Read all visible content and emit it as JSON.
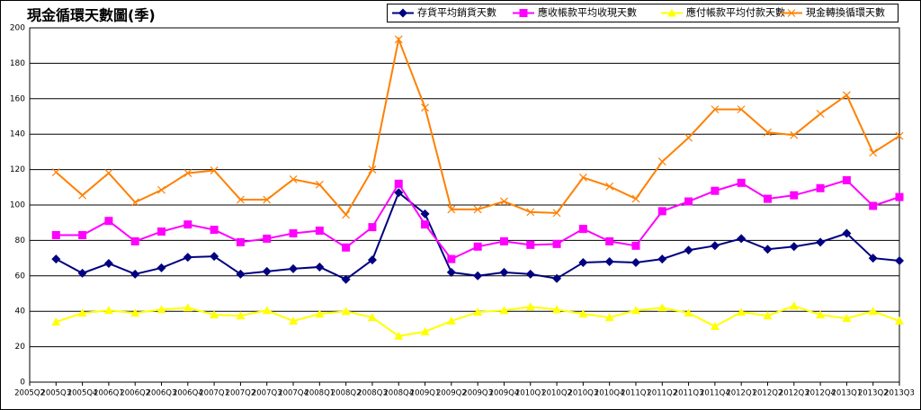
{
  "chart_data": {
    "type": "line",
    "title": "現金循環天數圖(季)",
    "categories": [
      "2005Q2",
      "2005Q3",
      "2005Q4",
      "2006Q1",
      "2006Q2",
      "2006Q3",
      "2006Q4",
      "2007Q1",
      "2007Q2",
      "2007Q3",
      "2007Q4",
      "2008Q1",
      "2008Q2",
      "2008Q3",
      "2008Q4",
      "2009Q1",
      "2009Q2",
      "2009Q3",
      "2009Q4",
      "2010Q1",
      "2010Q2",
      "2010Q3",
      "2010Q4",
      "2011Q1",
      "2011Q2",
      "2011Q3",
      "2011Q4",
      "2012Q1",
      "2012Q2",
      "2012Q3",
      "2012Q4",
      "2013Q1",
      "2013Q2",
      "2013Q3"
    ],
    "series": [
      {
        "name": "存貨平均銷貨天數",
        "color": "#000080",
        "marker": "diamond",
        "values": [
          null,
          69.5,
          61.5,
          67,
          61,
          64.5,
          70.5,
          71,
          61,
          62.5,
          64,
          65,
          58,
          69,
          107,
          95,
          62,
          60,
          62,
          61,
          58.5,
          67.5,
          68,
          67.5,
          69.5,
          74.5,
          77,
          81,
          75,
          76.5,
          79,
          84,
          70,
          68.5
        ]
      },
      {
        "name": "應收帳款平均收現天數",
        "color": "#ff00ff",
        "marker": "square",
        "values": [
          null,
          83,
          83,
          91,
          79.5,
          85,
          89,
          86,
          79,
          81,
          84,
          85.5,
          76,
          87.5,
          112,
          89,
          69.5,
          76.5,
          79.5,
          77.5,
          78,
          86.5,
          79.5,
          77,
          96.5,
          102,
          108,
          112.5,
          103.5,
          105.5,
          109.5,
          114,
          99.5,
          104.5
        ]
      },
      {
        "name": "應付帳款平均付款天數",
        "color": "#ffff00",
        "marker": "triangle",
        "values": [
          null,
          34,
          39,
          40.5,
          39,
          41,
          42,
          38,
          37.5,
          40.5,
          34.5,
          38.5,
          40,
          36.5,
          26,
          28.5,
          34.5,
          39.5,
          40.5,
          42.5,
          41,
          38.5,
          36.5,
          40.5,
          42,
          39,
          31.5,
          39.5,
          37.5,
          43,
          38,
          36,
          40,
          34.5
        ]
      },
      {
        "name": "現金轉換循環天數",
        "color": "#ff8000",
        "marker": "x",
        "values": [
          null,
          118.5,
          105.5,
          118,
          101.5,
          108.5,
          118,
          119.5,
          103,
          103,
          114.5,
          111.5,
          94.5,
          120,
          193.5,
          155,
          97.5,
          97.5,
          102,
          96,
          95.5,
          115.5,
          110.5,
          103.5,
          124.5,
          138,
          154,
          154,
          141,
          139.5,
          151.5,
          162,
          129.5,
          139
        ]
      }
    ],
    "ylim": [
      0,
      200
    ],
    "yticks": [
      0,
      20,
      40,
      60,
      80,
      100,
      120,
      140,
      160,
      180,
      200
    ],
    "grid": true
  }
}
